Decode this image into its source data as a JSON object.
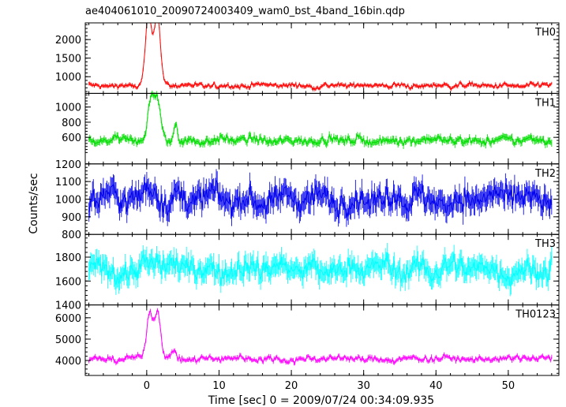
{
  "chart_data": {
    "type": "line",
    "title": "ae404061010_20090724003409_wam0_bst_4band_16bin.qdp",
    "xlabel": "Time [sec] 0 = 2009/07/24 00:34:09.935",
    "ylabel": "Counts/sec",
    "xlim": [
      -8.5,
      57
    ],
    "x_ticks": [
      0,
      10,
      20,
      30,
      40,
      50
    ],
    "x_tick_labels": [
      "0",
      "10",
      "20",
      "30",
      "40",
      "50"
    ],
    "x_start": -8,
    "x_end": 56,
    "x_step": 0.125,
    "panels": [
      {
        "name": "TH0",
        "color": "#ff0000",
        "ylim": [
          550,
          2450
        ],
        "y_ticks": [
          1000,
          1500,
          2000
        ],
        "y_tick_labels": [
          "1000",
          "1500",
          "2000"
        ],
        "baseline": 760,
        "noise": 55,
        "err": 45,
        "features": [
          {
            "type": "peak",
            "x": 0.2,
            "height": 1550,
            "width": 0.55
          },
          {
            "type": "peak",
            "x": 1.5,
            "height": 1550,
            "width": 0.55
          },
          {
            "type": "peak",
            "x": 0.9,
            "height": 600,
            "width": 1.0
          }
        ]
      },
      {
        "name": "TH1",
        "color": "#00dd00",
        "ylim": [
          250,
          1180
        ],
        "y_ticks": [
          600,
          800,
          1000
        ],
        "y_tick_labels": [
          "600",
          "800",
          "1000"
        ],
        "baseline": 560,
        "noise": 45,
        "err": 40,
        "features": [
          {
            "type": "peak",
            "x": 0.6,
            "height": 500,
            "width": 0.6
          },
          {
            "type": "peak",
            "x": 1.5,
            "height": 520,
            "width": 0.6
          },
          {
            "type": "peak",
            "x": 4.0,
            "height": 230,
            "width": 0.35
          }
        ]
      },
      {
        "name": "TH2",
        "color": "#0000ee",
        "ylim": [
          800,
          1200
        ],
        "y_ticks": [
          800,
          900,
          1000,
          1100,
          1200
        ],
        "y_tick_labels": [
          "800",
          "900",
          "1000",
          "1100",
          "1200"
        ],
        "baseline": 1000,
        "noise": 60,
        "err": 55,
        "features": [
          {
            "type": "peak",
            "x": 0.8,
            "height": 80,
            "width": 1.2
          }
        ]
      },
      {
        "name": "TH3",
        "color": "#00ffff",
        "ylim": [
          1400,
          1990
        ],
        "y_ticks": [
          1400,
          1600,
          1800
        ],
        "y_tick_labels": [
          "1400",
          "1600",
          "1800"
        ],
        "baseline": 1700,
        "noise": 80,
        "err": 75,
        "features": [
          {
            "type": "peak",
            "x": 1.0,
            "height": 60,
            "width": 1.5
          }
        ]
      },
      {
        "name": "TH0123",
        "color": "#ff00ff",
        "ylim": [
          3300,
          6600
        ],
        "y_ticks": [
          4000,
          5000,
          6000
        ],
        "y_tick_labels": [
          "4000",
          "5000",
          "6000"
        ],
        "baseline": 4080,
        "noise": 120,
        "err": 90,
        "features": [
          {
            "type": "peak",
            "x": 0.4,
            "height": 2150,
            "width": 0.6
          },
          {
            "type": "peak",
            "x": 1.5,
            "height": 2200,
            "width": 0.6
          },
          {
            "type": "peak",
            "x": 3.8,
            "height": 450,
            "width": 0.4
          }
        ]
      }
    ]
  }
}
